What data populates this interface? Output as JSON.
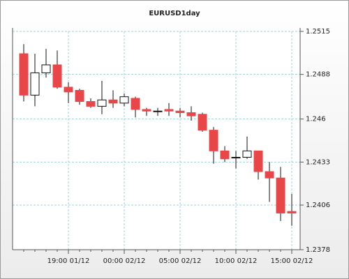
{
  "chart_data": {
    "type": "candlestick",
    "title": "EURUSD1day",
    "categories": [
      null,
      null,
      null,
      null,
      "19:00 01/12",
      null,
      null,
      null,
      null,
      "00:00 02/12",
      null,
      null,
      null,
      null,
      "05:00 02/12",
      null,
      null,
      null,
      null,
      "10:00 02/12",
      null,
      null,
      null,
      null,
      "15:00 02/12"
    ],
    "open": [
      1.2501,
      1.2475,
      1.2489,
      1.2494,
      1.248,
      1.2478,
      1.2471,
      1.2468,
      1.2472,
      1.247,
      1.2473,
      1.2466,
      1.2465,
      1.2466,
      1.2465,
      1.2464,
      1.2463,
      1.2453,
      1.244,
      1.2436,
      1.2436,
      1.244,
      1.2427,
      1.2423,
      1.2402
    ],
    "high": [
      1.2507,
      1.2501,
      1.2504,
      1.2503,
      1.2483,
      1.2479,
      1.2473,
      1.2484,
      1.2478,
      1.2476,
      1.2474,
      1.2467,
      1.2467,
      1.247,
      1.2467,
      1.2468,
      1.2464,
      1.2455,
      1.2443,
      1.244,
      1.2449,
      1.244,
      1.2433,
      1.243,
      1.2413
    ],
    "low": [
      1.2471,
      1.2468,
      1.2486,
      1.2479,
      1.247,
      1.2469,
      1.2467,
      1.2463,
      1.2467,
      1.2468,
      1.2461,
      1.2462,
      1.2462,
      1.2462,
      1.2461,
      1.2459,
      1.2452,
      1.2432,
      1.2433,
      1.2429,
      1.2435,
      1.2422,
      1.2408,
      1.2396,
      1.2393
    ],
    "close": [
      1.2475,
      1.2489,
      1.2494,
      1.248,
      1.2477,
      1.2471,
      1.2468,
      1.2472,
      1.247,
      1.2474,
      1.2466,
      1.2465,
      1.2465,
      1.2465,
      1.2464,
      1.2462,
      1.2453,
      1.244,
      1.2435,
      1.2436,
      1.244,
      1.2427,
      1.2423,
      1.2401,
      1.2401
    ],
    "up_color": "#ffffff",
    "down_color": "#e8474a",
    "ylim": [
      1.2378,
      1.2515
    ],
    "yticks": [
      1.2378,
      1.2406,
      1.2433,
      1.246,
      1.2488,
      1.2515
    ],
    "grid": true
  }
}
